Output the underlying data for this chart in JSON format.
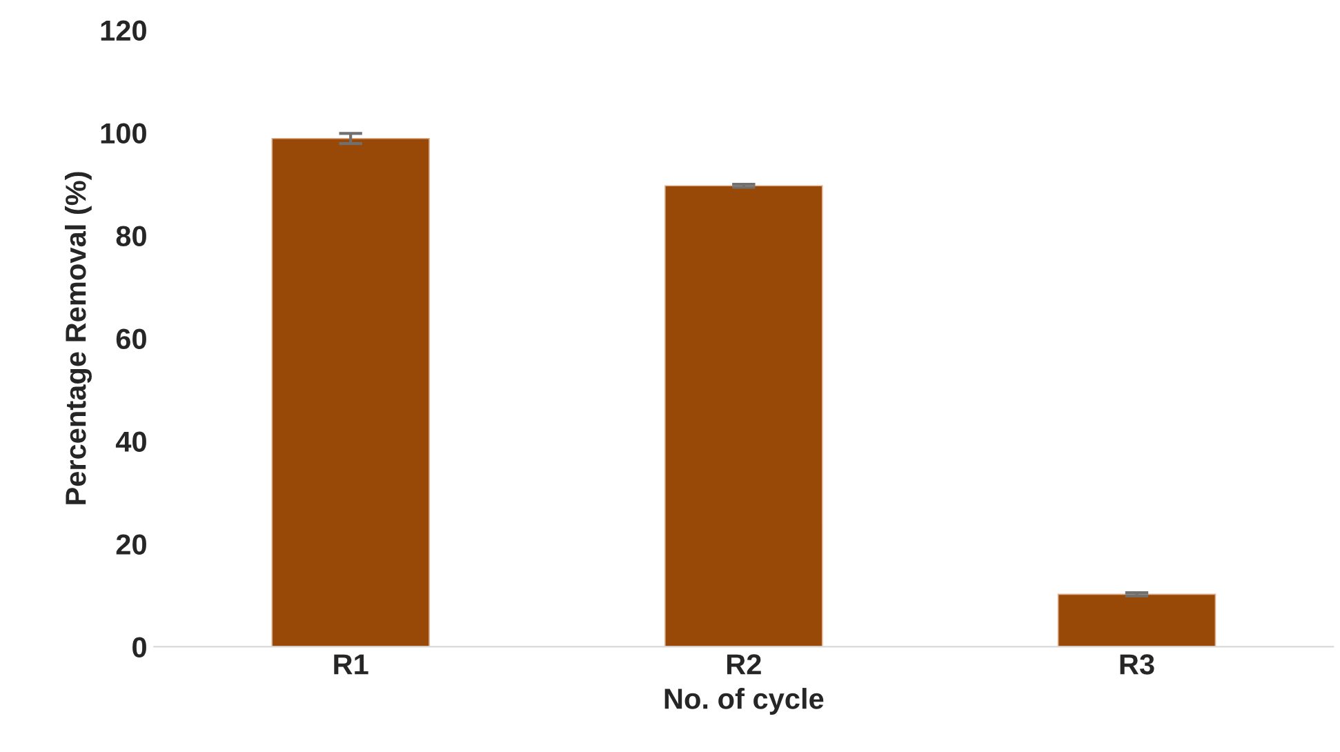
{
  "chart_data": {
    "type": "bar",
    "xlabel": "No. of cycle",
    "ylabel": "Percentage Removal (%)",
    "categories": [
      "R1",
      "R2",
      "R3"
    ],
    "values": [
      98.9,
      89.7,
      10.2
    ],
    "errors": [
      1.0,
      0.3,
      0.3
    ],
    "color": "#984807",
    "ylim": [
      0,
      120
    ],
    "yticks": [
      0,
      20,
      40,
      60,
      80,
      100,
      120
    ],
    "grid": false,
    "legend": false
  }
}
